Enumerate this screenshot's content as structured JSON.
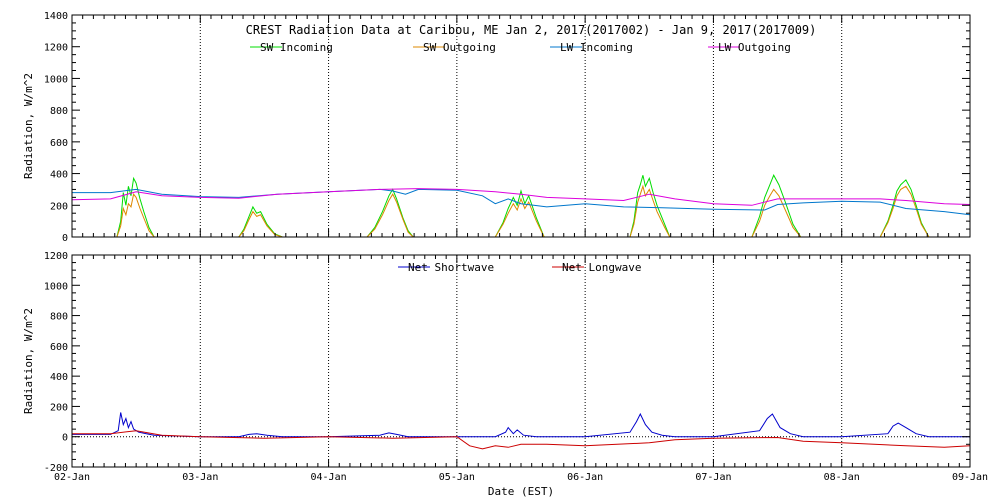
{
  "chart_data": [
    {
      "type": "line",
      "title": "CREST Radiation Data at Caribou, ME   Jan  2, 2017(2017002) - Jan  9, 2017(2017009)",
      "xlabel": "",
      "ylabel": "Radiation, W/m^2",
      "xlim": [
        0,
        7
      ],
      "ylim": [
        0,
        1400
      ],
      "xticks": [
        0,
        1,
        2,
        3,
        4,
        5,
        6,
        7
      ],
      "xtick_labels": [
        "02-Jan",
        "03-Jan",
        "04-Jan",
        "05-Jan",
        "06-Jan",
        "07-Jan",
        "08-Jan",
        "09-Jan"
      ],
      "yticks": [
        0,
        200,
        400,
        600,
        800,
        1000,
        1200,
        1400
      ],
      "grid": true,
      "legend_position": "top",
      "series": [
        {
          "name": "SW Incoming",
          "color": "#00dd00",
          "x": [
            0,
            0.35,
            0.38,
            0.4,
            0.42,
            0.44,
            0.46,
            0.48,
            0.5,
            0.53,
            0.56,
            0.6,
            0.64,
            1.3,
            1.34,
            1.38,
            1.41,
            1.44,
            1.47,
            1.52,
            1.58,
            1.64,
            2.3,
            2.36,
            2.42,
            2.47,
            2.5,
            2.53,
            2.58,
            2.62,
            2.66,
            3.3,
            3.36,
            3.4,
            3.44,
            3.47,
            3.5,
            3.53,
            3.56,
            3.62,
            3.68,
            4.35,
            4.38,
            4.41,
            4.43,
            4.45,
            4.47,
            4.5,
            4.53,
            4.56,
            4.62,
            4.66,
            5.3,
            5.36,
            5.4,
            5.44,
            5.47,
            5.51,
            5.56,
            5.62,
            5.68,
            6.3,
            6.36,
            6.4,
            6.43,
            6.46,
            6.5,
            6.54,
            6.58,
            6.62,
            6.68,
            7.0
          ],
          "y": [
            0,
            0,
            100,
            280,
            200,
            320,
            260,
            370,
            340,
            240,
            160,
            60,
            0,
            0,
            50,
            130,
            190,
            150,
            160,
            80,
            20,
            0,
            0,
            60,
            160,
            260,
            300,
            240,
            120,
            40,
            0,
            0,
            90,
            180,
            250,
            200,
            290,
            210,
            260,
            120,
            0,
            0,
            100,
            280,
            330,
            390,
            320,
            370,
            280,
            200,
            80,
            0,
            0,
            130,
            250,
            330,
            390,
            330,
            220,
            80,
            0,
            0,
            100,
            200,
            290,
            330,
            360,
            300,
            200,
            90,
            0,
            0
          ]
        },
        {
          "name": "SW Outgoing",
          "color": "#dd8800",
          "x": [
            0,
            0.35,
            0.38,
            0.4,
            0.42,
            0.44,
            0.46,
            0.48,
            0.5,
            0.53,
            0.56,
            0.6,
            0.64,
            1.3,
            1.34,
            1.38,
            1.41,
            1.44,
            1.47,
            1.52,
            1.58,
            1.64,
            2.3,
            2.36,
            2.42,
            2.47,
            2.5,
            2.53,
            2.58,
            2.62,
            2.66,
            3.3,
            3.36,
            3.4,
            3.44,
            3.47,
            3.5,
            3.53,
            3.56,
            3.62,
            3.68,
            4.35,
            4.38,
            4.41,
            4.43,
            4.45,
            4.47,
            4.5,
            4.53,
            4.56,
            4.62,
            4.66,
            5.3,
            5.36,
            5.4,
            5.44,
            5.47,
            5.51,
            5.56,
            5.62,
            5.68,
            6.3,
            6.36,
            6.4,
            6.43,
            6.46,
            6.5,
            6.54,
            6.58,
            6.62,
            6.68,
            7.0
          ],
          "y": [
            0,
            0,
            70,
            180,
            140,
            210,
            190,
            270,
            250,
            180,
            120,
            40,
            0,
            0,
            40,
            110,
            160,
            130,
            140,
            70,
            15,
            0,
            0,
            50,
            140,
            230,
            270,
            220,
            110,
            30,
            0,
            0,
            80,
            150,
            210,
            170,
            240,
            180,
            220,
            100,
            0,
            0,
            80,
            220,
            270,
            320,
            260,
            300,
            230,
            160,
            60,
            0,
            0,
            100,
            200,
            260,
            300,
            260,
            170,
            60,
            0,
            0,
            90,
            180,
            260,
            300,
            320,
            270,
            180,
            80,
            0,
            0
          ]
        },
        {
          "name": "LW Incoming",
          "color": "#0077cc",
          "x": [
            0,
            0.3,
            0.5,
            0.7,
            1.0,
            1.3,
            1.6,
            2.0,
            2.4,
            2.5,
            2.6,
            2.7,
            3.0,
            3.2,
            3.3,
            3.4,
            3.5,
            3.6,
            3.7,
            4.0,
            4.3,
            4.6,
            5.0,
            5.4,
            5.5,
            5.7,
            6.0,
            6.3,
            6.5,
            6.8,
            7.0
          ],
          "y": [
            280,
            280,
            300,
            270,
            255,
            250,
            270,
            285,
            300,
            290,
            270,
            300,
            295,
            260,
            210,
            240,
            210,
            200,
            190,
            210,
            190,
            185,
            175,
            170,
            205,
            215,
            225,
            220,
            180,
            160,
            140
          ]
        },
        {
          "name": "LW Outgoing",
          "color": "#dd00dd",
          "x": [
            0,
            0.3,
            0.5,
            0.7,
            1.0,
            1.3,
            1.6,
            2.0,
            2.4,
            2.7,
            3.0,
            3.3,
            3.5,
            3.7,
            4.0,
            4.3,
            4.5,
            4.7,
            5.0,
            5.3,
            5.5,
            5.7,
            6.0,
            6.3,
            6.5,
            6.8,
            7.0
          ],
          "y": [
            235,
            240,
            285,
            260,
            250,
            245,
            270,
            285,
            300,
            305,
            300,
            285,
            270,
            250,
            240,
            230,
            270,
            240,
            210,
            200,
            240,
            240,
            240,
            240,
            230,
            210,
            205
          ]
        }
      ]
    },
    {
      "type": "line",
      "title": "",
      "xlabel": "Date (EST)",
      "ylabel": "Radiation, W/m^2",
      "xlim": [
        0,
        7
      ],
      "ylim": [
        -200,
        1200
      ],
      "xticks": [
        0,
        1,
        2,
        3,
        4,
        5,
        6,
        7
      ],
      "xtick_labels": [
        "02-Jan",
        "03-Jan",
        "04-Jan",
        "05-Jan",
        "06-Jan",
        "07-Jan",
        "08-Jan",
        "09-Jan"
      ],
      "yticks": [
        -200,
        0,
        200,
        400,
        600,
        800,
        1000,
        1200
      ],
      "grid": true,
      "legend_position": "top",
      "series": [
        {
          "name": "Net Shortwave",
          "color": "#0000cc",
          "x": [
            0,
            0.3,
            0.36,
            0.38,
            0.4,
            0.42,
            0.44,
            0.46,
            0.48,
            0.52,
            0.58,
            0.64,
            1.0,
            1.3,
            1.38,
            1.44,
            1.52,
            1.64,
            2.0,
            2.4,
            2.47,
            2.53,
            2.62,
            3.0,
            3.3,
            3.38,
            3.4,
            3.44,
            3.47,
            3.52,
            3.62,
            3.7,
            4.0,
            4.35,
            4.4,
            4.43,
            4.47,
            4.52,
            4.6,
            4.7,
            5.0,
            5.36,
            5.42,
            5.46,
            5.52,
            5.6,
            5.7,
            6.0,
            6.36,
            6.4,
            6.44,
            6.5,
            6.58,
            6.68,
            7.0
          ],
          "y": [
            15,
            15,
            40,
            160,
            80,
            120,
            60,
            100,
            50,
            30,
            20,
            10,
            0,
            0,
            15,
            20,
            10,
            0,
            0,
            10,
            25,
            15,
            0,
            0,
            0,
            30,
            60,
            20,
            45,
            10,
            0,
            0,
            0,
            30,
            100,
            150,
            80,
            30,
            10,
            0,
            0,
            40,
            120,
            150,
            60,
            20,
            0,
            0,
            20,
            70,
            90,
            60,
            20,
            0,
            0
          ]
        },
        {
          "name": "Net Longwave",
          "color": "#cc0000",
          "x": [
            0,
            0.3,
            0.5,
            0.7,
            1.0,
            1.5,
            2.0,
            2.5,
            3.0,
            3.1,
            3.2,
            3.3,
            3.4,
            3.5,
            3.7,
            4.0,
            4.5,
            4.7,
            5.0,
            5.5,
            5.7,
            6.0,
            6.5,
            6.8,
            7.0
          ],
          "y": [
            20,
            20,
            40,
            10,
            0,
            -10,
            0,
            -10,
            0,
            -60,
            -80,
            -60,
            -70,
            -50,
            -50,
            -60,
            -40,
            -20,
            -10,
            -5,
            -30,
            -40,
            -60,
            -70,
            -60
          ]
        }
      ]
    }
  ]
}
